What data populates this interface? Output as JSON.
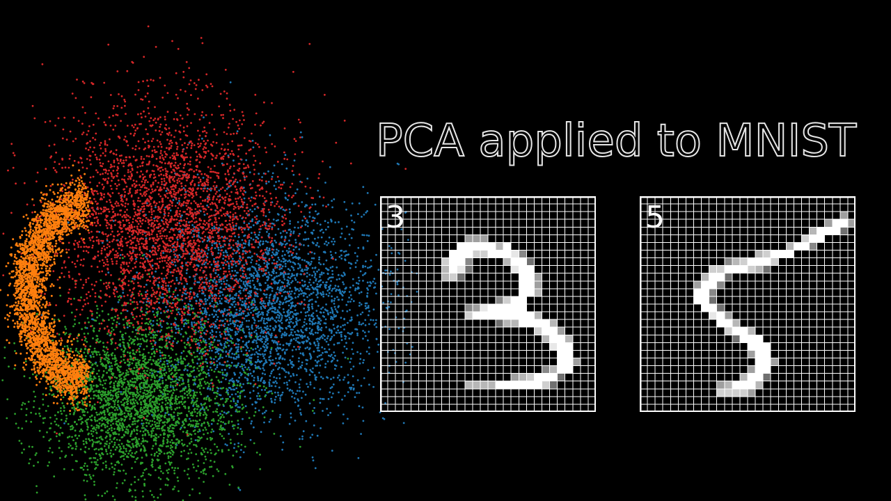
{
  "title": "PCA applied to MNIST",
  "colors": {
    "background": "#000000",
    "orange": "#ff7f0e",
    "red": "#d62728",
    "green": "#2ca02c",
    "blue": "#1f77b4",
    "grid": "#ffffff",
    "ink": "#ffffff"
  },
  "digits": [
    {
      "label": "3",
      "rows": [
        "............................",
        "............................",
        "............................",
        "............................",
        "............................",
        "...........555..............",
        "..........9999969...........",
        ".........9997799984.........",
        "........7994....6993........",
        "........6983.....899........",
        "........673.......995.......",
        "..................995.......",
        "..................996.......",
        "...............4799.........",
        "...........45899999.........",
        "...........7999999996.......",
        "...............36699996.....",
        "....................7995....",
        ".....................6996...",
        "......................899...",
        ".......................99...",
        ".......................995..",
        ".....................4699...",
        ".................5679993....",
        "...........666699999973.....",
        "............................",
        "............................",
        "............................"
      ]
    },
    {
      "label": "5",
      "rows": [
        "............................",
        "............................",
        "..........................5.",
        "........................5995",
        "......................69993.",
        ".....................799....",
        "...................6994.....",
        "...............67999.......",
        "...........4679997.........",
        ".........77999763..........",
        "........6993................",
        ".......5994.................",
        ".......994..................",
        ".......993..................",
        "........993.................",
        ".........895................",
        "..........996...............",
        "...........7996.............",
        "............3999............",
        "..............999...........",
        "..............599...........",
        "...............995..........",
        "..............599...........",
        ".............6993...........",
        "..........569996............",
        "..........77775.............",
        "............................",
        "............................"
      ]
    }
  ]
}
